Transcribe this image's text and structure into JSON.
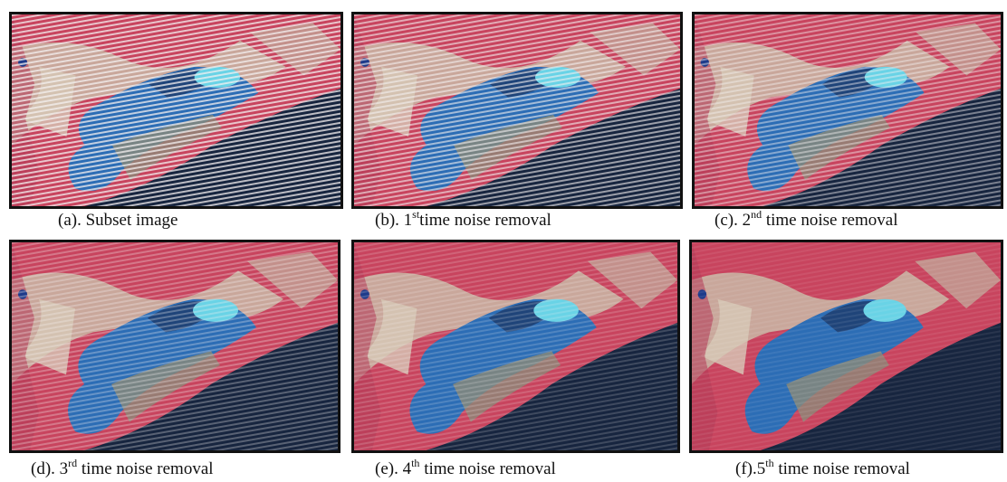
{
  "panels": [
    {
      "caption": {
        "prefix": "(a). Subset image"
      }
    },
    {
      "caption": {
        "prefix": "(b). 1",
        "sup": "st",
        "suffix": "time noise removal"
      }
    },
    {
      "caption": {
        "prefix": "(c). 2",
        "sup": "nd",
        "suffix": " time noise removal"
      }
    },
    {
      "caption": {
        "prefix": "(d). 3",
        "sup": "rd",
        "suffix": " time noise removal"
      }
    },
    {
      "caption": {
        "prefix": "(e). 4",
        "sup": "th",
        "suffix": " time noise removal"
      }
    },
    {
      "caption": {
        "prefix": "(f).5",
        "sup": "th",
        "suffix": " time noise removal"
      }
    }
  ]
}
